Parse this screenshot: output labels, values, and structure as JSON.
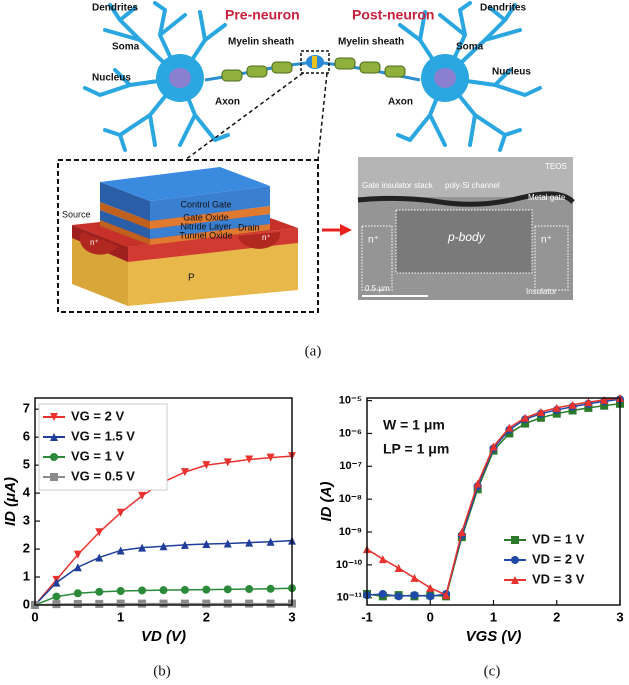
{
  "diagram": {
    "pre_neuron": "Pre-neuron",
    "post_neuron": "Post-neuron",
    "left": {
      "dendrites": "Dendrites",
      "soma": "Soma",
      "nucleus": "Nucleus",
      "myelin": "Myelin sheath",
      "axon": "Axon"
    },
    "right": {
      "dendrites": "Dendrites",
      "soma": "Soma",
      "nucleus": "Nucleus",
      "myelin": "Myelin sheath",
      "axon": "Axon"
    },
    "device": {
      "control_gate": "Control Gate",
      "gate_oxide": "Gate Oxide",
      "nitride": "Nitride Layer",
      "tunnel_oxide": "Tunnel Oxide",
      "source": "Source",
      "drain": "Drain",
      "n_left": "n⁺",
      "n_right": "n⁺",
      "substrate": "P"
    },
    "sem": {
      "teos": "TEOS",
      "gate_stack": "Gate insulator stack",
      "channel": "poly-Si channel",
      "metal_gate": "Metal gate",
      "n_left": "n⁺",
      "body": "p-body",
      "n_right": "n⁺",
      "scale": "0.5 μm",
      "insulator": "Insulator"
    }
  },
  "captions": [
    "(a)",
    "(b)",
    "(c)"
  ],
  "chart_data": [
    {
      "type": "line",
      "xlabel": "VD (V)",
      "ylabel": "ID (μA)",
      "xlim": [
        0,
        3.0
      ],
      "ylim": [
        0,
        7.4
      ],
      "xticks": [
        0,
        1,
        2,
        3
      ],
      "yticks": [
        0,
        1,
        2,
        3,
        4,
        5,
        6,
        7
      ],
      "legend": "upper left",
      "x": [
        0,
        0.25,
        0.5,
        0.75,
        1,
        1.25,
        1.5,
        1.75,
        2,
        2.25,
        2.5,
        2.75,
        3
      ],
      "series": [
        {
          "name": "VG = 2 V",
          "color": "#e8322e",
          "marker": "triangle-down",
          "values": [
            0,
            0.9,
            1.8,
            2.6,
            3.3,
            3.9,
            4.4,
            4.75,
            5.0,
            5.1,
            5.2,
            5.27,
            5.32
          ]
        },
        {
          "name": "VG = 1.5 V",
          "color": "#1f3d99",
          "marker": "triangle-up",
          "values": [
            0,
            0.8,
            1.35,
            1.7,
            1.95,
            2.05,
            2.1,
            2.15,
            2.18,
            2.2,
            2.23,
            2.26,
            2.3
          ]
        },
        {
          "name": "VG = 1 V",
          "color": "#2a8a3a",
          "marker": "circle",
          "values": [
            0,
            0.3,
            0.42,
            0.47,
            0.5,
            0.52,
            0.53,
            0.54,
            0.55,
            0.56,
            0.57,
            0.58,
            0.6
          ]
        },
        {
          "name": "VG = 0.5 V",
          "color": "#8a8a8a",
          "marker": "square",
          "values": [
            0,
            0.03,
            0.04,
            0.04,
            0.05,
            0.05,
            0.05,
            0.05,
            0.05,
            0.05,
            0.05,
            0.05,
            0.05
          ]
        }
      ]
    },
    {
      "type": "line",
      "xlabel": "VGS (V)",
      "ylabel": "ID (A)",
      "yscale": "log",
      "xlim": [
        -1,
        3
      ],
      "ylim": [
        6e-12,
        1.2e-05
      ],
      "xticks": [
        -1,
        0,
        1,
        2,
        3
      ],
      "yticks": [
        {
          "value": 1e-11,
          "label": "10⁻¹¹"
        },
        {
          "value": 1e-10,
          "label": "10⁻¹⁰"
        },
        {
          "value": 1e-09,
          "label": "10⁻⁹"
        },
        {
          "value": 1e-08,
          "label": "10⁻⁸"
        },
        {
          "value": 1e-07,
          "label": "10⁻⁷"
        },
        {
          "value": 1e-06,
          "label": "10⁻⁶"
        },
        {
          "value": 1e-05,
          "label": "10⁻⁵"
        }
      ],
      "legend": "lower right",
      "annotations": [
        "W = 1 μm",
        "LP = 1 μm"
      ],
      "x": [
        -1,
        -0.75,
        -0.5,
        -0.25,
        0,
        0.25,
        0.5,
        0.75,
        1,
        1.25,
        1.5,
        1.75,
        2,
        2.25,
        2.5,
        2.75,
        3
      ],
      "series": [
        {
          "name": "VD = 1 V",
          "color": "#2a7a2a",
          "marker": "square",
          "values": [
            1.3e-11,
            1.1e-11,
            1.2e-11,
            1.1e-11,
            1.2e-11,
            1.1e-11,
            7e-10,
            2e-08,
            3e-07,
            1e-06,
            2e-06,
            3e-06,
            4e-06,
            5e-06,
            6e-06,
            7e-06,
            8e-06
          ]
        },
        {
          "name": "VD = 2 V",
          "color": "#1f4aa8",
          "marker": "circle",
          "values": [
            1.2e-11,
            1.3e-11,
            1.1e-11,
            1.2e-11,
            1.1e-11,
            1.3e-11,
            8e-10,
            2.5e-08,
            3.5e-07,
            1.3e-06,
            2.7e-06,
            4e-06,
            5.2e-06,
            6.5e-06,
            8e-06,
            9.5e-06,
            1.1e-05
          ]
        },
        {
          "name": "VD = 3 V",
          "color": "#e8322e",
          "marker": "triangle-up",
          "values": [
            3e-10,
            1.5e-10,
            8e-11,
            4e-11,
            2e-11,
            1.2e-11,
            1e-09,
            3e-08,
            4e-07,
            1.5e-06,
            3e-06,
            4.5e-06,
            6e-06,
            7.5e-06,
            9e-06,
            1.05e-05,
            1.2e-05
          ]
        }
      ]
    }
  ]
}
